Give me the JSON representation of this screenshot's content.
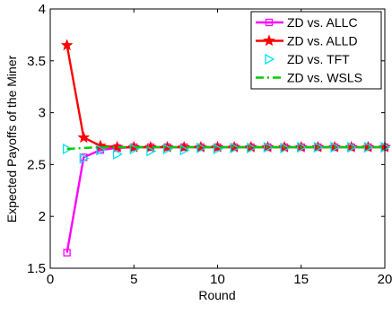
{
  "chart_data": {
    "type": "line",
    "title": "",
    "xlabel": "Round",
    "ylabel": "Expected Payoffs of the Miner",
    "xlim": [
      0,
      20
    ],
    "ylim": [
      1.5,
      4
    ],
    "xticks": [
      0,
      5,
      10,
      15,
      20
    ],
    "yticks": [
      1.5,
      2,
      2.5,
      3,
      3.5,
      4
    ],
    "xtick_labels": [
      "0",
      "5",
      "10",
      "15",
      "20"
    ],
    "ytick_labels": [
      "1.5",
      "2",
      "2.5",
      "3",
      "3.5",
      "4"
    ],
    "grid": false,
    "legend_position": "top-right",
    "x": [
      1,
      2,
      3,
      4,
      5,
      6,
      7,
      8,
      9,
      10,
      11,
      12,
      13,
      14,
      15,
      16,
      17,
      18,
      19,
      20
    ],
    "series": [
      {
        "name": "ZD vs. ALLC",
        "color": "#ff00ff",
        "marker": "square",
        "line_style": "solid",
        "values": [
          1.65,
          2.57,
          2.64,
          2.66,
          2.667,
          2.667,
          2.667,
          2.667,
          2.667,
          2.667,
          2.667,
          2.667,
          2.667,
          2.667,
          2.667,
          2.667,
          2.667,
          2.667,
          2.667,
          2.667
        ]
      },
      {
        "name": "ZD vs. ALLD",
        "color": "#ff0000",
        "marker": "star",
        "line_style": "solid",
        "values": [
          3.65,
          2.76,
          2.68,
          2.667,
          2.667,
          2.667,
          2.667,
          2.667,
          2.667,
          2.667,
          2.667,
          2.667,
          2.667,
          2.667,
          2.667,
          2.667,
          2.667,
          2.667,
          2.667,
          2.667
        ]
      },
      {
        "name": "ZD vs. TFT",
        "color": "#00e5ee",
        "marker": "triangle-right",
        "line_style": "none",
        "values": [
          2.65,
          2.56,
          2.64,
          2.6,
          2.65,
          2.63,
          2.65,
          2.64,
          2.66,
          2.65,
          2.66,
          2.66,
          2.667,
          2.66,
          2.667,
          2.667,
          2.667,
          2.667,
          2.667,
          2.667
        ]
      },
      {
        "name": "ZD vs. WSLS",
        "color": "#00cc00",
        "marker": "none",
        "line_style": "dash-dot",
        "values": [
          2.65,
          2.66,
          2.667,
          2.667,
          2.667,
          2.667,
          2.667,
          2.667,
          2.667,
          2.667,
          2.667,
          2.667,
          2.667,
          2.667,
          2.667,
          2.667,
          2.667,
          2.667,
          2.667,
          2.667
        ]
      }
    ]
  }
}
